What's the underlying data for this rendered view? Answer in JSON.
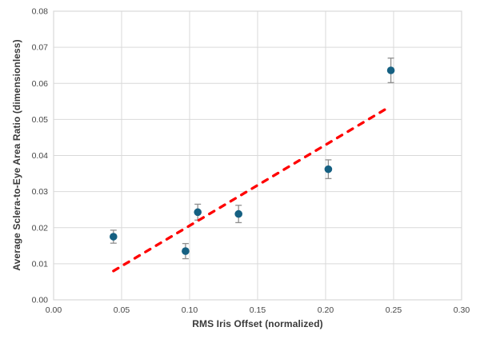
{
  "chart_data": {
    "type": "scatter",
    "title": "",
    "xlabel": "RMS Iris Offset (normalized)",
    "ylabel": "Average Sclera-to-Eye Area Ratio (dimensionless)",
    "xlim": [
      0,
      0.3
    ],
    "ylim": [
      0,
      0.08
    ],
    "x_ticks": [
      0,
      0.05,
      0.1,
      0.15,
      0.2,
      0.25,
      0.3
    ],
    "y_ticks": [
      0,
      0.01,
      0.02,
      0.03,
      0.04,
      0.05,
      0.06,
      0.07,
      0.08
    ],
    "tick_label_decimals": 2,
    "grid": true,
    "legend": "none",
    "series": [
      {
        "name": "sclera-ratio-points",
        "marker": "circle",
        "marker_color": "#156082",
        "error_bar_color": "#8f8f8f",
        "points": [
          {
            "x": 0.044,
            "y": 0.0175,
            "yerr": 0.0018
          },
          {
            "x": 0.097,
            "y": 0.0135,
            "yerr": 0.0021
          },
          {
            "x": 0.106,
            "y": 0.0243,
            "yerr": 0.0022
          },
          {
            "x": 0.136,
            "y": 0.0238,
            "yerr": 0.0024
          },
          {
            "x": 0.202,
            "y": 0.0362,
            "yerr": 0.0026
          },
          {
            "x": 0.248,
            "y": 0.0636,
            "yerr": 0.0034
          }
        ]
      }
    ],
    "trendline": {
      "style": "dashed",
      "color": "#FF0000",
      "x_start": 0.044,
      "y_start": 0.008,
      "x_end": 0.247,
      "y_end": 0.0535
    },
    "colors": {
      "background": "#FFFFFF",
      "gridline": "#D9D9D9",
      "plot_border": "#D9D9D9",
      "tick_text": "#464646",
      "axis_title_text": "#3A3A3A"
    }
  }
}
